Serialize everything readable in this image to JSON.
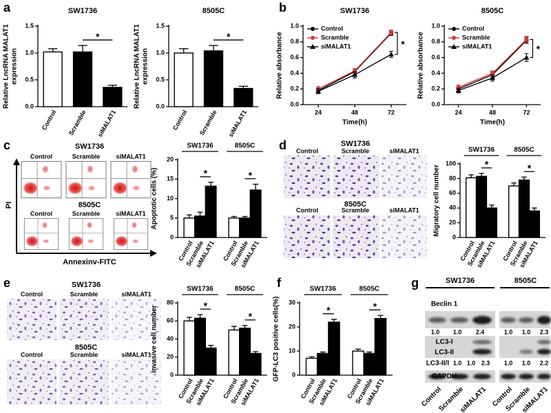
{
  "panels": {
    "letters": [
      "a",
      "b",
      "c",
      "d",
      "e",
      "f",
      "g"
    ],
    "c": {
      "cell_lines": [
        "SW1736",
        "8505C"
      ],
      "conditions": [
        "Control",
        "Scramble",
        "siMALAT1"
      ],
      "y_label": "PI",
      "x_label": "Annexinv-FITC"
    },
    "d": {
      "cell_lines": [
        "SW1736",
        "8505C"
      ],
      "conditions": [
        "Control",
        "Scramble",
        "siMALAT1"
      ]
    },
    "e": {
      "cell_lines": [
        "SW1736",
        "8505C"
      ],
      "conditions": [
        "Control",
        "Scramble",
        "siMALAT1"
      ]
    },
    "g": {
      "cell_lines": [
        "SW1736",
        "8505C"
      ],
      "rows": [
        "Beclin 1",
        "LC3-I",
        "LC3-II",
        "LC3-II/I",
        "GAPDH"
      ],
      "beclin_ratios": [
        [
          "1.0",
          "1.0",
          "2.4"
        ],
        [
          "1.0",
          "1.0",
          "2.3"
        ]
      ],
      "lc3_ratios": [
        [
          "1.0",
          "1.0",
          "2.3"
        ],
        [
          "1.0",
          "1.0",
          "2.2"
        ]
      ],
      "conditions": [
        "Control",
        "Scramble",
        "siMALAT1"
      ]
    }
  },
  "chart_data": [
    {
      "type": "bar",
      "title": "SW1736",
      "y_label": [
        "Relative LncRNA MALAT1",
        "expression"
      ],
      "categories": [
        "Control",
        "Scramble",
        "siMALAT1"
      ],
      "values": [
        1.02,
        1.02,
        0.36
      ],
      "errors": [
        0.06,
        0.12,
        0.04
      ],
      "colors": [
        "#ffffff",
        "#000000",
        "#000000"
      ],
      "ylim": [
        0,
        1.5
      ],
      "yticks": [
        {
          "value": 0,
          "label": "0.0"
        },
        {
          "value": 0.5,
          "label": "0.5"
        },
        {
          "value": 1,
          "label": "1.0"
        },
        {
          "value": 1.5,
          "label": "1.5"
        }
      ],
      "annotations": [
        "*"
      ]
    },
    {
      "type": "bar",
      "title": "8505C",
      "y_label": [
        "Relative LncRNA MALAT1",
        "expression"
      ],
      "categories": [
        "Control",
        "Scramble",
        "siMALAT1"
      ],
      "values": [
        1.0,
        1.04,
        0.34
      ],
      "errors": [
        0.08,
        0.1,
        0.04
      ],
      "colors": [
        "#ffffff",
        "#000000",
        "#000000"
      ],
      "ylim": [
        0,
        1.5
      ],
      "yticks": [
        {
          "value": 0,
          "label": "0.0"
        },
        {
          "value": 0.5,
          "label": "0.5"
        },
        {
          "value": 1,
          "label": "1.0"
        },
        {
          "value": 1.5,
          "label": "1.5"
        }
      ],
      "annotations": [
        "*"
      ]
    },
    {
      "type": "line",
      "title": "SW1736",
      "x_label": "Time(h)",
      "y_label": "Relative absorbance",
      "x": [
        24,
        48,
        72
      ],
      "xlim": [
        14,
        82
      ],
      "xticks": [
        24,
        48,
        72
      ],
      "ylim": [
        0,
        1
      ],
      "yticks": [
        {
          "value": 0,
          "label": "0.0"
        },
        {
          "value": 0.2,
          "label": "0.2"
        },
        {
          "value": 0.4,
          "label": "0.4"
        },
        {
          "value": 0.6,
          "label": "0.6"
        },
        {
          "value": 0.8,
          "label": "0.8"
        },
        {
          "value": 1,
          "label": "1.0"
        }
      ],
      "series": [
        {
          "name": "Control",
          "color": "#000000",
          "marker": "circle",
          "values": [
            0.18,
            0.42,
            0.91
          ],
          "errors": [
            0.03,
            0.04,
            0.03
          ]
        },
        {
          "name": "Scramble",
          "color": "#d9383a",
          "marker": "circle",
          "values": [
            0.2,
            0.43,
            0.92
          ],
          "errors": [
            0.03,
            0.03,
            0.03
          ]
        },
        {
          "name": "siMALAT1",
          "color": "#000000",
          "marker": "triangle",
          "values": [
            0.17,
            0.38,
            0.64
          ],
          "errors": [
            0.03,
            0.04,
            0.04
          ]
        }
      ],
      "legend": "upper left",
      "annotations": [
        "*"
      ]
    },
    {
      "type": "line",
      "title": "8505C",
      "x_label": "Time(h)",
      "y_label": "Relative absorbance",
      "x": [
        24,
        48,
        72
      ],
      "xlim": [
        14,
        82
      ],
      "xticks": [
        24,
        48,
        72
      ],
      "ylim": [
        0,
        1
      ],
      "yticks": [
        {
          "value": 0,
          "label": "0.0"
        },
        {
          "value": 0.2,
          "label": "0.2"
        },
        {
          "value": 0.4,
          "label": "0.4"
        },
        {
          "value": 0.6,
          "label": "0.6"
        },
        {
          "value": 0.8,
          "label": "0.8"
        },
        {
          "value": 1,
          "label": "1.0"
        }
      ],
      "series": [
        {
          "name": "Control",
          "color": "#000000",
          "marker": "circle",
          "values": [
            0.2,
            0.38,
            0.82
          ],
          "errors": [
            0.03,
            0.04,
            0.04
          ]
        },
        {
          "name": "Scramble",
          "color": "#d9383a",
          "marker": "circle",
          "values": [
            0.22,
            0.4,
            0.83
          ],
          "errors": [
            0.03,
            0.03,
            0.04
          ]
        },
        {
          "name": "siMALAT1",
          "color": "#000000",
          "marker": "triangle",
          "values": [
            0.18,
            0.34,
            0.6
          ],
          "errors": [
            0.03,
            0.04,
            0.05
          ]
        }
      ],
      "legend": "upper left",
      "annotations": [
        "*"
      ]
    },
    {
      "type": "bar",
      "groups": [
        "SW1736",
        "8505C"
      ],
      "y_label": "Apoptotic cells (%)",
      "ylim": [
        0,
        20
      ],
      "yticks": [
        0,
        5,
        10,
        15,
        20
      ],
      "series": [
        {
          "name": "Control",
          "color": "#ffffff",
          "values": [
            5,
            5
          ],
          "errors": [
            0.8,
            0.4
          ]
        },
        {
          "name": "Scramble",
          "color": "#000000",
          "values": [
            5.5,
            5
          ],
          "errors": [
            1,
            0.4
          ]
        },
        {
          "name": "siMALAT1",
          "color": "#000000",
          "values": [
            13.2,
            12.2
          ],
          "errors": [
            1,
            1.5
          ]
        }
      ],
      "annotations": [
        "*",
        "*"
      ]
    },
    {
      "type": "bar",
      "groups": [
        "SW1736",
        "8505C"
      ],
      "y_label": "Migratory cell number",
      "ylim": [
        0,
        100
      ],
      "yticks": [
        0,
        20,
        40,
        60,
        80,
        100
      ],
      "series": [
        {
          "name": "Control",
          "color": "#ffffff",
          "values": [
            81,
            70
          ],
          "errors": [
            4,
            4
          ]
        },
        {
          "name": "Scramble",
          "color": "#000000",
          "values": [
            83,
            78
          ],
          "errors": [
            4,
            4
          ]
        },
        {
          "name": "siMALAT1",
          "color": "#000000",
          "values": [
            40,
            36
          ],
          "errors": [
            4,
            4
          ]
        }
      ],
      "annotations": [
        "*",
        "*"
      ]
    },
    {
      "type": "bar",
      "groups": [
        "SW1736",
        "8505C"
      ],
      "y_label": "Invasive cell number",
      "ylim": [
        0,
        80
      ],
      "yticks": [
        0,
        20,
        40,
        60,
        80
      ],
      "series": [
        {
          "name": "Control",
          "color": "#ffffff",
          "values": [
            60,
            50
          ],
          "errors": [
            4,
            4
          ]
        },
        {
          "name": "Scramble",
          "color": "#000000",
          "values": [
            63,
            52
          ],
          "errors": [
            4,
            3
          ]
        },
        {
          "name": "siMALAT1",
          "color": "#000000",
          "values": [
            30,
            24
          ],
          "errors": [
            3,
            2
          ]
        }
      ],
      "annotations": [
        "*",
        "*"
      ]
    },
    {
      "type": "bar",
      "groups": [
        "SW1736",
        "8505C"
      ],
      "y_label": "GFP-LC3 positive cells(%)",
      "ylim": [
        0,
        30
      ],
      "yticks": [
        0,
        10,
        20,
        30
      ],
      "series": [
        {
          "name": "Control",
          "color": "#ffffff",
          "values": [
            7,
            10
          ],
          "errors": [
            0.6,
            0.8
          ]
        },
        {
          "name": "Scramble",
          "color": "#000000",
          "values": [
            9,
            9
          ],
          "errors": [
            0.6,
            0.6
          ]
        },
        {
          "name": "siMALAT1",
          "color": "#000000",
          "values": [
            22,
            23.5
          ],
          "errors": [
            1.2,
            1.3
          ]
        }
      ],
      "annotations": [
        "*",
        "*"
      ]
    }
  ]
}
